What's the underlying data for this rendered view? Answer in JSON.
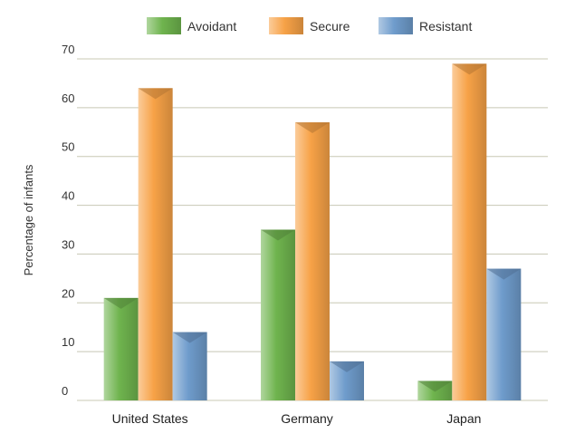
{
  "chart_data": {
    "type": "bar",
    "title": "",
    "xlabel": "",
    "ylabel": "Percentage of infants",
    "ylim": [
      0,
      70
    ],
    "yticks": [
      0,
      10,
      20,
      30,
      40,
      50,
      60,
      70
    ],
    "grid": true,
    "legend_position": "top-center",
    "categories": [
      "United States",
      "Germany",
      "Japan"
    ],
    "series": [
      {
        "name": "Avoidant",
        "color": "#6fb44e",
        "values": [
          21,
          35,
          4
        ]
      },
      {
        "name": "Secure",
        "color": "#f7a247",
        "values": [
          64,
          57,
          69
        ]
      },
      {
        "name": "Resistant",
        "color": "#6f9ccc",
        "values": [
          14,
          8,
          27
        ]
      }
    ]
  }
}
